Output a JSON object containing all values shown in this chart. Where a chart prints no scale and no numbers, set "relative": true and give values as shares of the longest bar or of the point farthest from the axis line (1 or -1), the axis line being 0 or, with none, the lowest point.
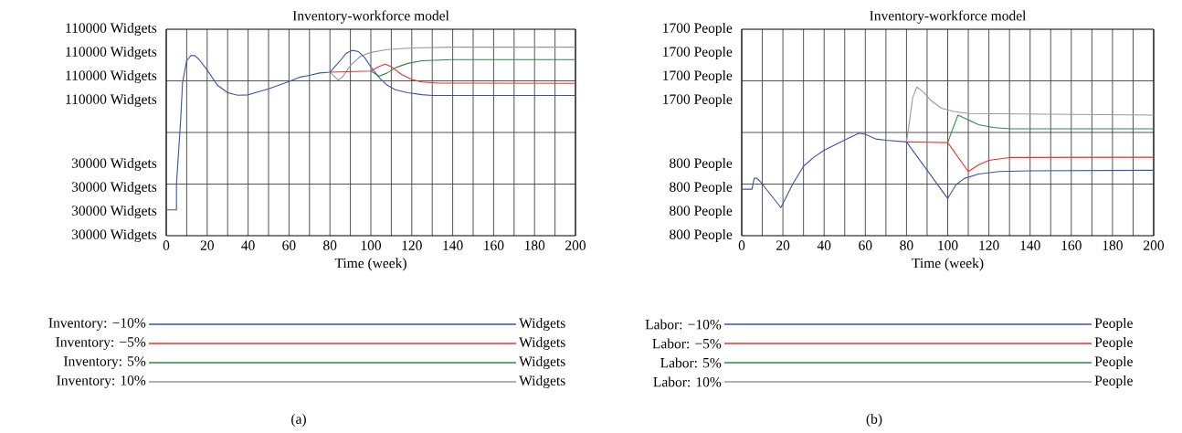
{
  "chart_data": [
    {
      "type": "line",
      "title": "Inventory-workforce model",
      "xlabel": "Time (week)",
      "relative": true,
      "grid": true,
      "legend": "bottom",
      "xlim": [
        0,
        200
      ],
      "xticks": [
        0,
        {
          "value": 10,
          "label": null
        },
        20,
        {
          "value": 30,
          "label": null
        },
        40,
        {
          "value": 50,
          "label": null
        },
        60,
        {
          "value": 70,
          "label": null
        },
        80,
        {
          "value": 90,
          "label": null
        },
        100,
        {
          "value": 110,
          "label": null
        },
        120,
        {
          "value": 130,
          "label": null
        },
        140,
        {
          "value": 150,
          "label": null
        },
        160,
        {
          "value": 170,
          "label": null
        },
        180,
        {
          "value": 190,
          "label": null
        },
        200
      ],
      "annotations": [
        "110000 Widgets",
        "110000 Widgets",
        "110000 Widgets",
        "110000 Widgets",
        "30000 Widgets",
        "30000 Widgets",
        "30000 Widgets",
        "30000 Widgets",
        "Widgets",
        "Widgets",
        "Widgets",
        "Widgets",
        "(a)"
      ],
      "series": [
        {
          "name": "Inventory: −10%",
          "color": "#3a55a4",
          "x": [
            0,
            5,
            5,
            7,
            8,
            10,
            12,
            14,
            16,
            20,
            25,
            30,
            35,
            40,
            50,
            60,
            65,
            70,
            75,
            80,
            85,
            88,
            91,
            94,
            97,
            100,
            104,
            108,
            112,
            118,
            125,
            130,
            200
          ],
          "values": [
            0.137,
            0.137,
            0.274,
            0.605,
            0.815,
            0.928,
            0.955,
            0.955,
            0.935,
            0.879,
            0.798,
            0.758,
            0.745,
            0.747,
            0.779,
            0.818,
            0.84,
            0.85,
            0.863,
            0.867,
            0.928,
            0.968,
            0.983,
            0.976,
            0.944,
            0.895,
            0.839,
            0.798,
            0.774,
            0.758,
            0.748,
            0.744,
            0.744
          ]
        },
        {
          "name": "Inventory: −5%",
          "color": "#ee3030",
          "x": [
            80,
            100,
            104,
            107,
            110,
            115,
            120,
            125,
            133,
            200
          ],
          "values": [
            0.867,
            0.873,
            0.898,
            0.91,
            0.896,
            0.855,
            0.828,
            0.815,
            0.809,
            0.808
          ]
        },
        {
          "name": "Inventory: 5%",
          "color": "#2e8b45",
          "x": [
            100,
            104,
            108,
            112,
            118,
            125,
            140,
            200
          ],
          "values": [
            0.873,
            0.846,
            0.863,
            0.891,
            0.914,
            0.928,
            0.934,
            0.934
          ]
        },
        {
          "name": "Inventory: 10%",
          "color": "#999999",
          "x": [
            80,
            82,
            84,
            86,
            90,
            95,
            100,
            108,
            120,
            140,
            200
          ],
          "values": [
            0.867,
            0.847,
            0.825,
            0.84,
            0.903,
            0.952,
            0.972,
            0.987,
            0.996,
            1,
            1
          ]
        }
      ]
    },
    {
      "type": "line",
      "title": "Inventory-workforce model",
      "xlabel": "Time (week)",
      "relative": true,
      "grid": true,
      "legend": "bottom",
      "xlim": [
        0,
        200
      ],
      "xticks": [
        0,
        {
          "value": 10,
          "label": null
        },
        20,
        {
          "value": 30,
          "label": null
        },
        40,
        {
          "value": 50,
          "label": null
        },
        60,
        {
          "value": 70,
          "label": null
        },
        80,
        {
          "value": 90,
          "label": null
        },
        100,
        {
          "value": 110,
          "label": null
        },
        120,
        {
          "value": 130,
          "label": null
        },
        140,
        {
          "value": 150,
          "label": null
        },
        160,
        {
          "value": 170,
          "label": null
        },
        180,
        {
          "value": 190,
          "label": null
        },
        200
      ],
      "annotations": [
        "1700 People",
        "1700 People",
        "1700 People",
        "1700 People",
        "800 People",
        "800 People",
        "800 People",
        "800 People",
        "People",
        "People",
        "People",
        "People",
        "(b)"
      ],
      "series": [
        {
          "name": "Labor: −10%",
          "color": "#3a55a4",
          "x": [
            0,
            5,
            6,
            7,
            9,
            19,
            25,
            30,
            35,
            40,
            50,
            57,
            60,
            65,
            70,
            80,
            100,
            104,
            108,
            115,
            125,
            140,
            200
          ],
          "values": [
            0.313,
            0.313,
            0.385,
            0.389,
            0.364,
            0.189,
            0.353,
            0.467,
            0.528,
            0.575,
            0.644,
            0.69,
            0.682,
            0.651,
            0.642,
            0.631,
            0.25,
            0.343,
            0.385,
            0.415,
            0.432,
            0.436,
            0.44
          ]
        },
        {
          "name": "Labor: −5%",
          "color": "#ee3030",
          "x": [
            80,
            100,
            110,
            115,
            120,
            130,
            200
          ],
          "values": [
            0.631,
            0.626,
            0.432,
            0.476,
            0.507,
            0.526,
            0.528
          ]
        },
        {
          "name": "Labor: 5%",
          "color": "#2e8b45",
          "x": [
            100,
            102,
            105,
            110,
            115,
            122,
            130,
            200
          ],
          "values": [
            0.626,
            0.703,
            0.811,
            0.779,
            0.747,
            0.728,
            0.719,
            0.719
          ]
        },
        {
          "name": "Labor: 10%",
          "color": "#999999",
          "x": [
            80,
            81,
            83,
            85,
            88,
            92,
            97,
            103,
            110,
            200
          ],
          "values": [
            0.631,
            0.723,
            0.929,
            1,
            0.969,
            0.908,
            0.857,
            0.836,
            0.822,
            0.811
          ]
        }
      ]
    }
  ]
}
